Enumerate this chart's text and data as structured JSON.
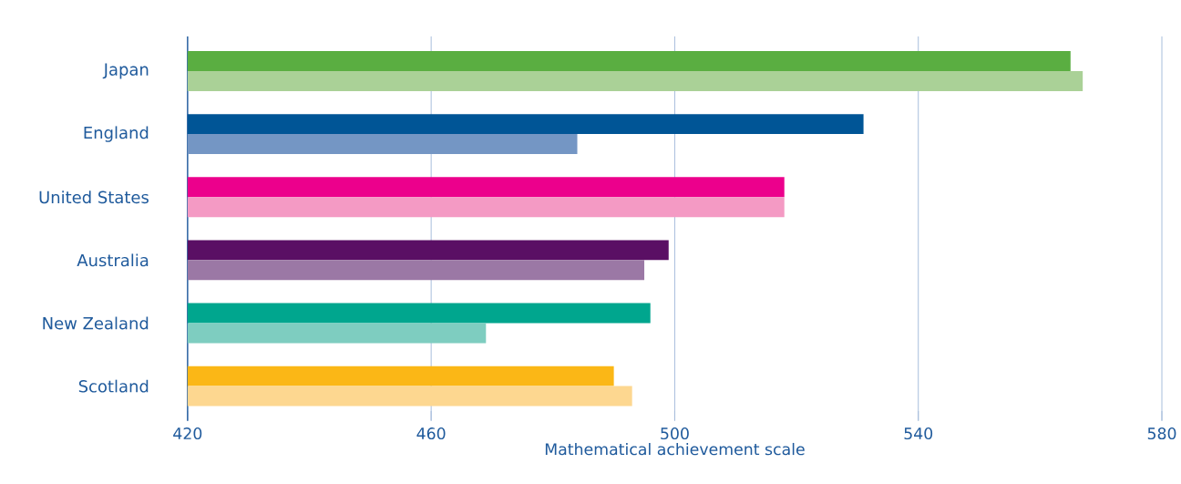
{
  "chart_data": {
    "type": "bar",
    "orientation": "horizontal",
    "xlabel": "Mathematical achievement scale",
    "categories": [
      "Japan",
      "England",
      "United States",
      "Australia",
      "New Zealand",
      "Scotland"
    ],
    "series": [
      {
        "colors": [
          "#5aae41",
          "#005596",
          "#ec008c",
          "#5a0f64",
          "#00a68e",
          "#fbb716"
        ],
        "values": [
          565,
          531,
          518,
          499,
          496,
          490
        ]
      },
      {
        "colors": [
          "#aad197",
          "#7496c4",
          "#f49ac4",
          "#9b78a5",
          "#7ecdc0",
          "#fdd790"
        ],
        "values": [
          567,
          484,
          518,
          495,
          469,
          493
        ]
      }
    ],
    "xlim": [
      420,
      580
    ],
    "xticks": [
      420,
      460,
      500,
      540,
      580
    ],
    "grid": "x"
  }
}
